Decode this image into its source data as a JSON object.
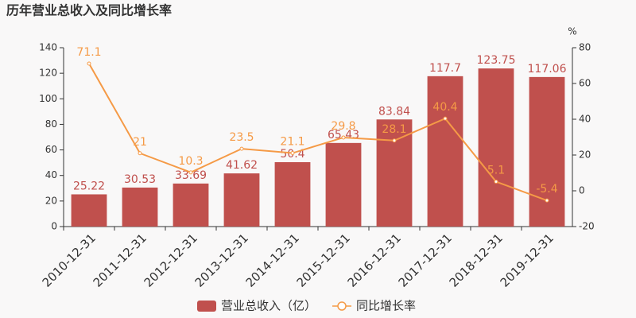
{
  "chart_data": {
    "type": "bar",
    "title": "历年营业总收入及同比增长率",
    "y2_label": "%",
    "categories": [
      "2010-12-31",
      "2011-12-31",
      "2012-12-31",
      "2013-12-31",
      "2014-12-31",
      "2015-12-31",
      "2016-12-31",
      "2017-12-31",
      "2018-12-31",
      "2019-12-31"
    ],
    "series": [
      {
        "name": "营业总收入（亿）",
        "type": "bar",
        "color": "#c0504d",
        "values": [
          25.22,
          30.53,
          33.69,
          41.62,
          50.4,
          65.43,
          83.84,
          117.7,
          123.75,
          117.06
        ]
      },
      {
        "name": "同比增长率",
        "type": "line",
        "axis": "y2",
        "color": "#f59a46",
        "values": [
          71.1,
          21,
          10.3,
          23.5,
          21.1,
          29.8,
          28.1,
          40.4,
          5.1,
          -5.4
        ]
      }
    ],
    "ylim": [
      0,
      140
    ],
    "yticks": [
      0,
      20,
      40,
      60,
      80,
      100,
      120,
      140
    ],
    "y2lim": [
      -20,
      80
    ],
    "y2ticks": [
      -20,
      0,
      20,
      40,
      60,
      80
    ],
    "grid": false
  }
}
